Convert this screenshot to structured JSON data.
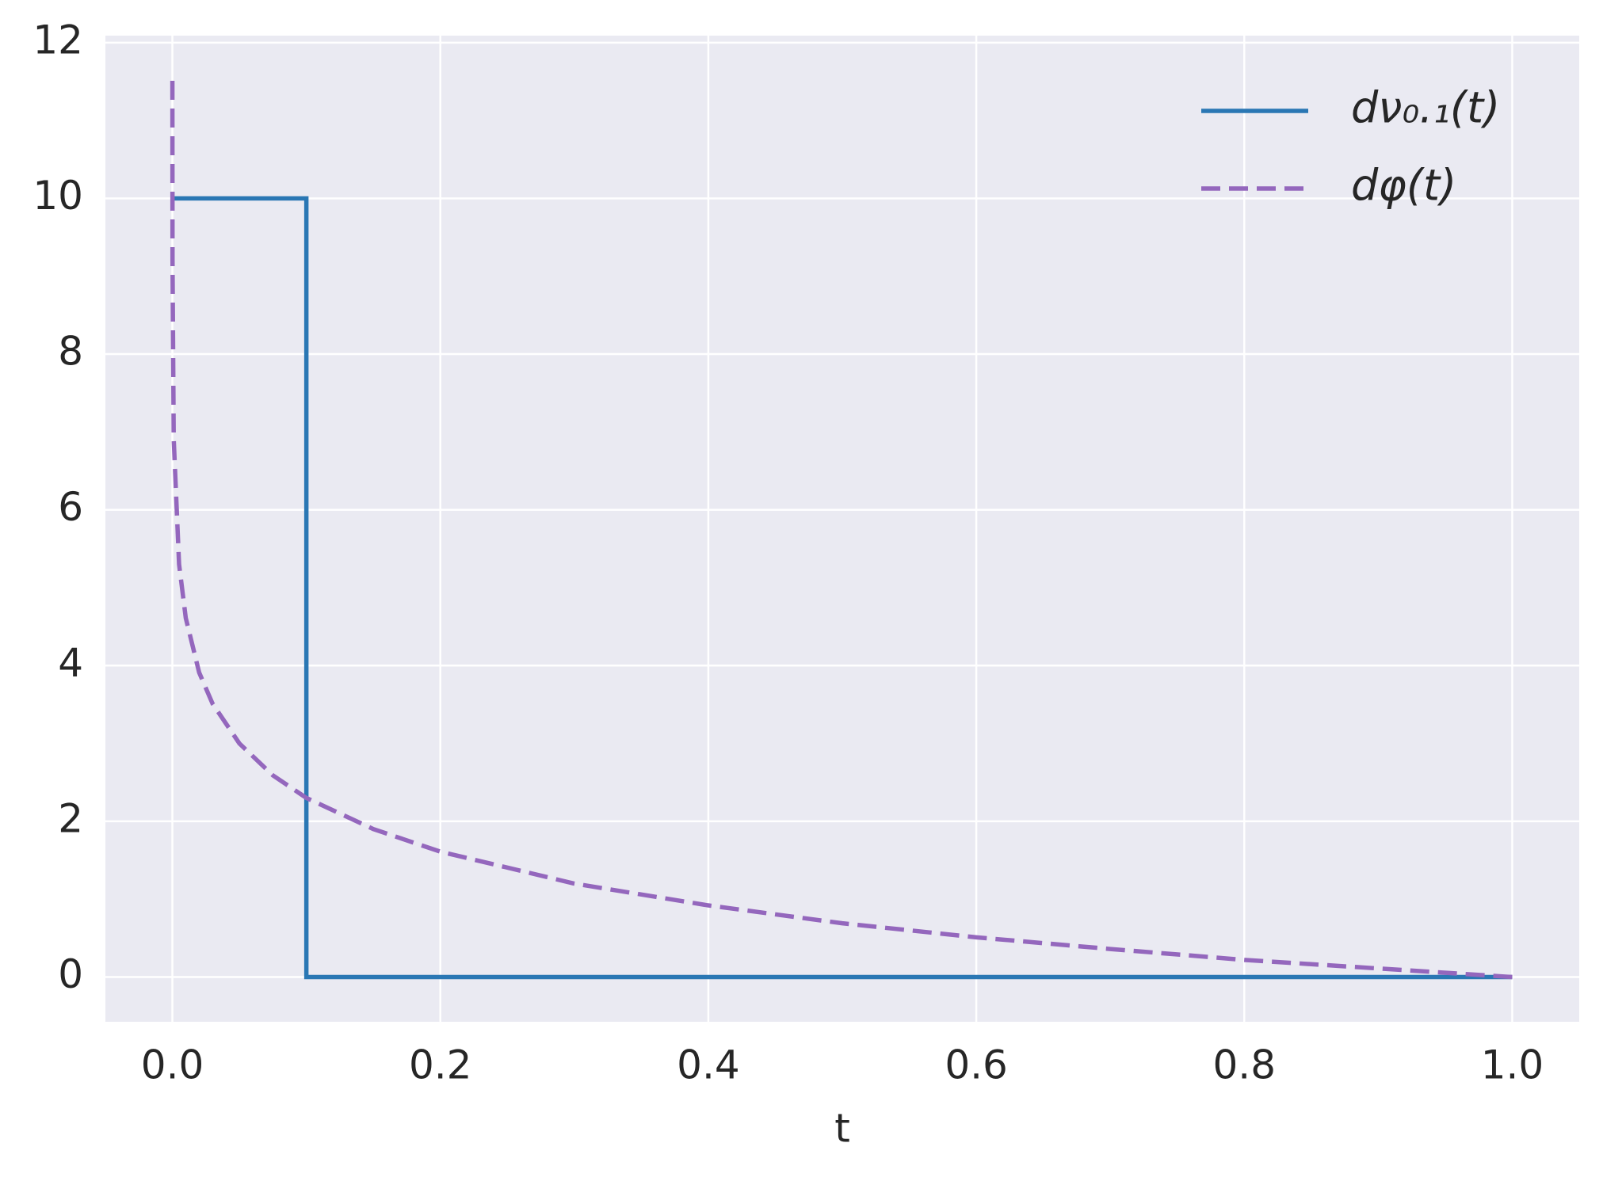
{
  "chart_data": {
    "type": "line",
    "xlabel": "t",
    "xlim": [
      -0.05,
      1.05
    ],
    "ylim": [
      -0.575,
      12.09
    ],
    "xticks": [
      {
        "value": 0,
        "label": "0.0"
      },
      0.2,
      0.4,
      0.6,
      0.8,
      {
        "value": 1,
        "label": "1.0"
      }
    ],
    "yticks": [
      0,
      2,
      4,
      6,
      8,
      10,
      12
    ],
    "grid": true,
    "legend": "upper right",
    "background": "#eaeaf2",
    "series": [
      {
        "name": "dν₀.₁(t)",
        "color": "#2a77b4",
        "dash": false,
        "x": [
          0,
          0.1,
          0.1,
          1
        ],
        "values": [
          10,
          10,
          0,
          0
        ]
      },
      {
        "name": "dφ(t)",
        "color": "#9467bd",
        "dash": true,
        "x": [
          1e-05,
          0.0001,
          0.001,
          0.005,
          0.01,
          0.02,
          0.03,
          0.05,
          0.075,
          0.1,
          0.15,
          0.2,
          0.3,
          0.4,
          0.5,
          0.6,
          0.7,
          0.8,
          0.9,
          1
        ],
        "values": [
          11.51,
          9.21,
          6.91,
          5.3,
          4.61,
          3.91,
          3.51,
          3.0,
          2.59,
          2.3,
          1.9,
          1.61,
          1.2,
          0.92,
          0.69,
          0.51,
          0.36,
          0.22,
          0.11,
          0
        ]
      }
    ]
  }
}
